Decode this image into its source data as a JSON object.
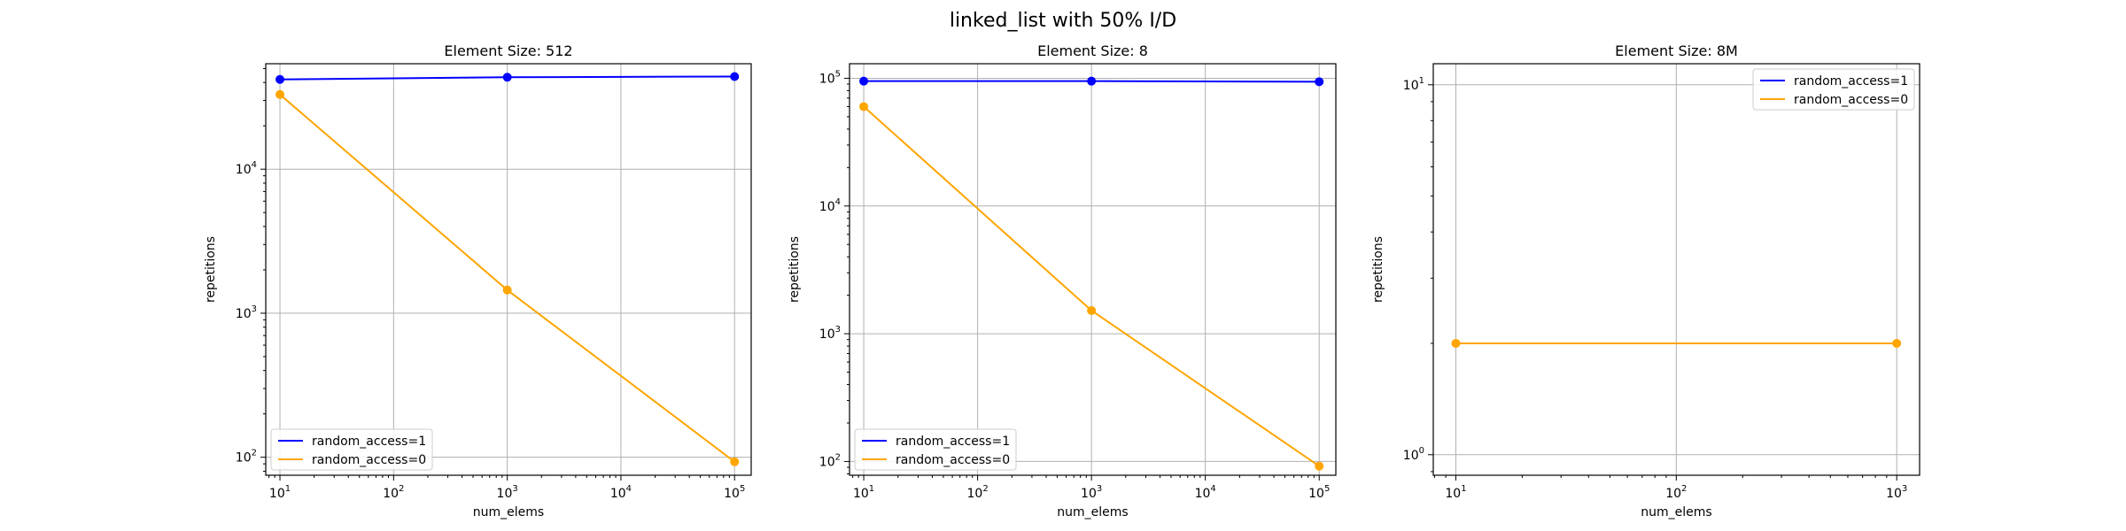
{
  "figure": {
    "suptitle": "linked_list with 50% I/D"
  },
  "colors": {
    "random_access_1": "#0000ff",
    "random_access_0": "#ffa500",
    "grid": "#b0b0b0"
  },
  "chart_data": [
    {
      "type": "line",
      "title": "Element Size: 512",
      "xlabel": "num_elems",
      "ylabel": "repetitions",
      "xscale": "log",
      "yscale": "log",
      "xlim": [
        7.5,
        140000
      ],
      "ylim": [
        75,
        54000
      ],
      "xticks": [
        10,
        100,
        1000,
        10000,
        100000
      ],
      "xtick_labels": [
        [
          "10",
          "1"
        ],
        [
          "10",
          "2"
        ],
        [
          "10",
          "3"
        ],
        [
          "10",
          "4"
        ],
        [
          "10",
          "5"
        ]
      ],
      "yticks": [
        100,
        1000,
        10000
      ],
      "ytick_labels": [
        [
          "10",
          "2"
        ],
        [
          "10",
          "3"
        ],
        [
          "10",
          "4"
        ]
      ],
      "grid": true,
      "legend_loc": "lower-left",
      "series": [
        {
          "name": "random_access=1",
          "color_key": "random_access_1",
          "x": [
            10,
            1000,
            100000
          ],
          "y": [
            42000,
            43500,
            44000
          ]
        },
        {
          "name": "random_access=0",
          "color_key": "random_access_0",
          "x": [
            10,
            1000,
            100000
          ],
          "y": [
            33000,
            1450,
            93
          ]
        }
      ]
    },
    {
      "type": "line",
      "title": "Element Size: 8",
      "xlabel": "num_elems",
      "ylabel": "repetitions",
      "xscale": "log",
      "yscale": "log",
      "xlim": [
        7.5,
        140000
      ],
      "ylim": [
        78,
        130000
      ],
      "xticks": [
        10,
        100,
        1000,
        10000,
        100000
      ],
      "xtick_labels": [
        [
          "10",
          "1"
        ],
        [
          "10",
          "2"
        ],
        [
          "10",
          "3"
        ],
        [
          "10",
          "4"
        ],
        [
          "10",
          "5"
        ]
      ],
      "yticks": [
        100,
        1000,
        10000,
        100000
      ],
      "ytick_labels": [
        [
          "10",
          "2"
        ],
        [
          "10",
          "3"
        ],
        [
          "10",
          "4"
        ],
        [
          "10",
          "5"
        ]
      ],
      "grid": true,
      "legend_loc": "lower-left",
      "series": [
        {
          "name": "random_access=1",
          "color_key": "random_access_1",
          "x": [
            10,
            1000,
            100000
          ],
          "y": [
            95000,
            95000,
            94000
          ]
        },
        {
          "name": "random_access=0",
          "color_key": "random_access_0",
          "x": [
            10,
            1000,
            100000
          ],
          "y": [
            60000,
            1520,
            92
          ]
        }
      ]
    },
    {
      "type": "line",
      "title": "Element Size: 8M",
      "xlabel": "num_elems",
      "ylabel": "repetitions",
      "xscale": "log",
      "yscale": "log",
      "xlim": [
        7.9,
        1270
      ],
      "ylim": [
        0.88,
        11.4
      ],
      "xticks": [
        10,
        100,
        1000
      ],
      "xtick_labels": [
        [
          "10",
          "1"
        ],
        [
          "10",
          "2"
        ],
        [
          "10",
          "3"
        ]
      ],
      "yticks": [
        1,
        10
      ],
      "ytick_labels": [
        [
          "10",
          "0"
        ],
        [
          "10",
          "1"
        ]
      ],
      "grid": true,
      "legend_loc": "upper-right",
      "series": [
        {
          "name": "random_access=1",
          "color_key": "random_access_1",
          "x": [],
          "y": []
        },
        {
          "name": "random_access=0",
          "color_key": "random_access_0",
          "x": [
            10,
            1000
          ],
          "y": [
            2,
            2
          ]
        }
      ]
    }
  ]
}
